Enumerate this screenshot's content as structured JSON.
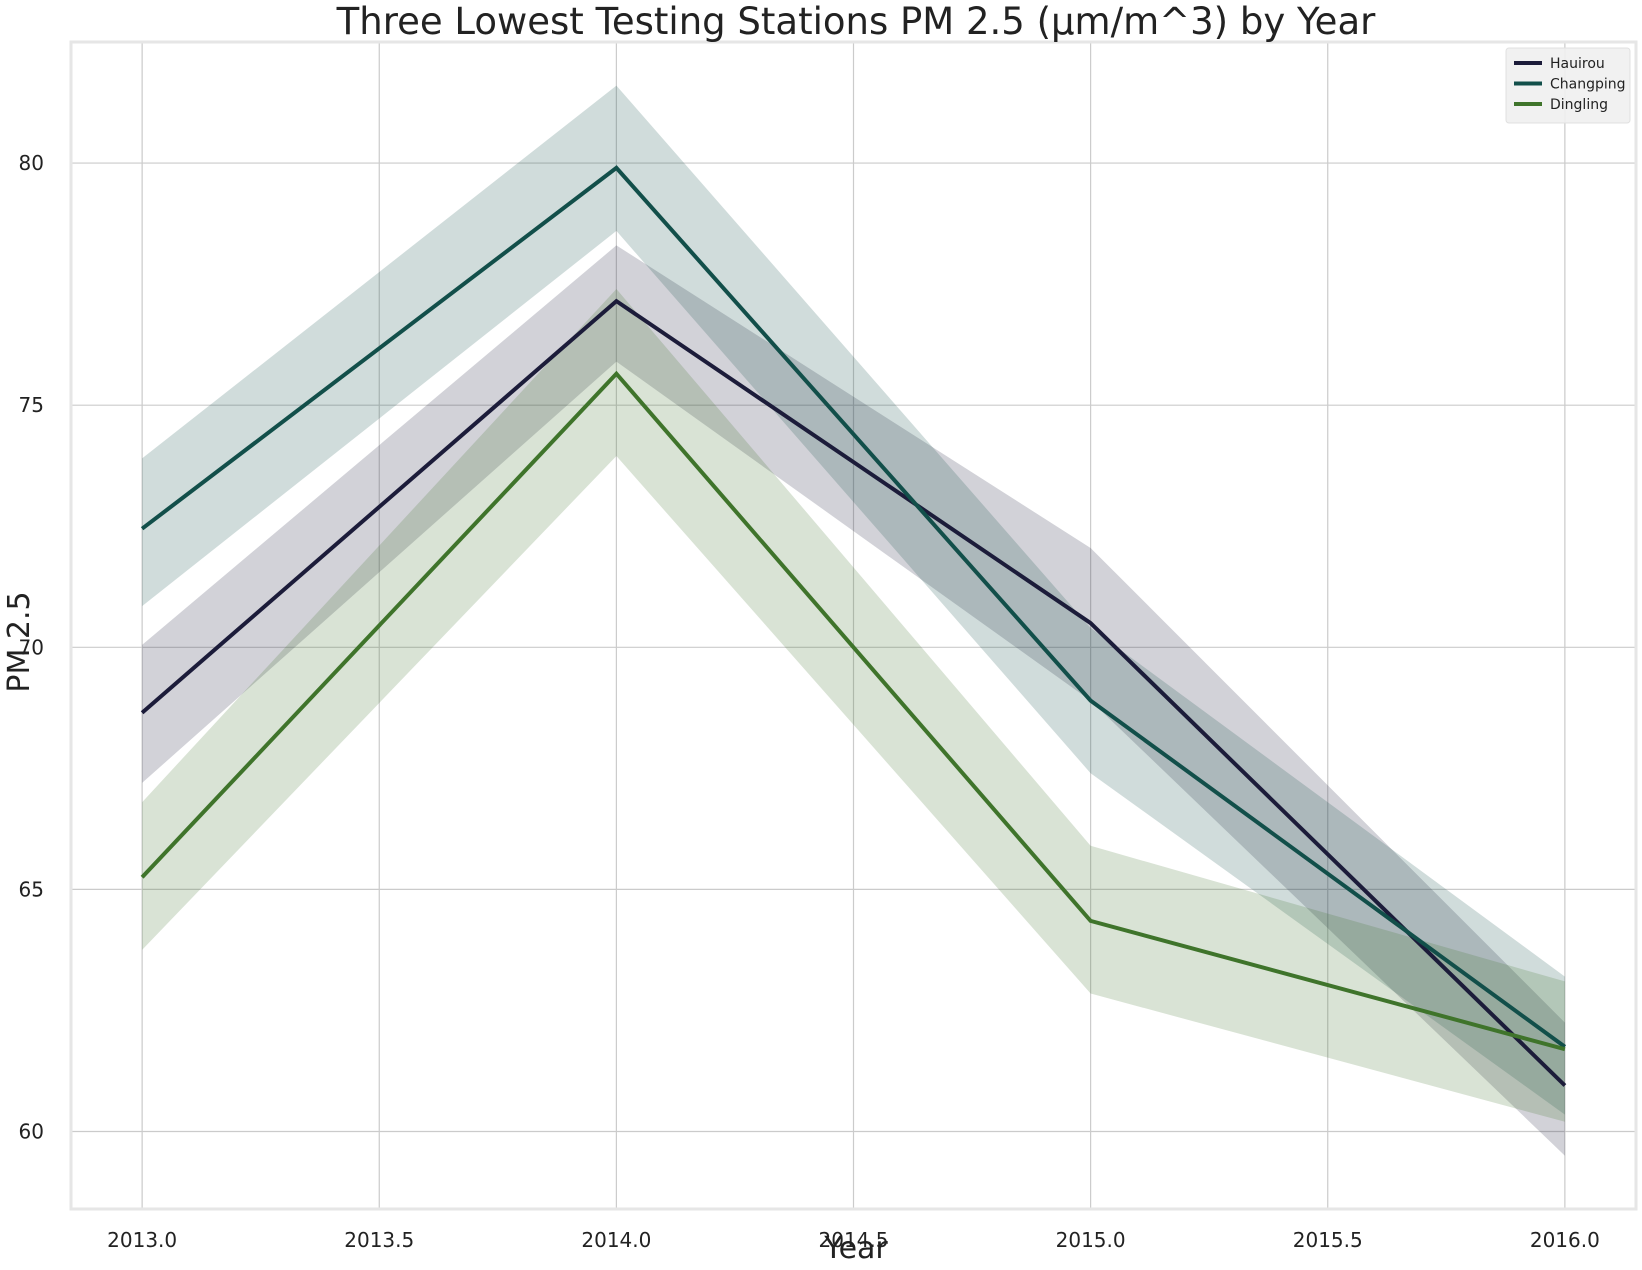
{
  "chart_data": {
    "type": "line",
    "title": "Three Lowest Testing Stations PM 2.5 (µm/m^3) by Year",
    "xlabel": "Year",
    "ylabel": "PM 2.5",
    "xlim": [
      2012.85,
      2016.15
    ],
    "ylim": [
      58.4,
      82.5
    ],
    "xticks": [
      2013.0,
      2013.5,
      2014.0,
      2014.5,
      2015.0,
      2015.5,
      2016.0
    ],
    "xtick_labels": [
      "2013.0",
      "2013.5",
      "2014.0",
      "2014.5",
      "2015.0",
      "2015.5",
      "2016.0"
    ],
    "yticks": [
      60,
      65,
      70,
      75,
      80
    ],
    "ytick_labels": [
      "60",
      "65",
      "70",
      "75",
      "80"
    ],
    "grid": true,
    "legend_position": "top-right",
    "x": [
      2013,
      2014,
      2015,
      2016
    ],
    "series": [
      {
        "name": "Hauirou",
        "color": "#1c1c3a",
        "values": [
          68.65,
          77.15,
          70.5,
          60.95
        ],
        "ci_lower": [
          67.2,
          75.9,
          68.9,
          59.5
        ],
        "ci_upper": [
          70.05,
          78.3,
          72.05,
          62.25
        ]
      },
      {
        "name": "Changping",
        "color": "#124f4a",
        "values": [
          72.45,
          79.9,
          68.9,
          61.75
        ],
        "ci_lower": [
          70.85,
          78.6,
          67.4,
          60.35
        ],
        "ci_upper": [
          73.9,
          81.6,
          70.4,
          63.2
        ]
      },
      {
        "name": "Dingling",
        "color": "#3f742b",
        "values": [
          65.25,
          75.65,
          64.35,
          61.7
        ],
        "ci_lower": [
          63.75,
          73.95,
          62.85,
          60.2
        ],
        "ci_upper": [
          66.8,
          77.4,
          65.9,
          63.1
        ]
      }
    ]
  }
}
